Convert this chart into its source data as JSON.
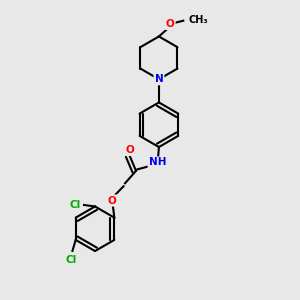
{
  "bg_color": "#e8e8e8",
  "bond_color": "#000000",
  "bond_width": 1.5,
  "atom_colors": {
    "O": "#ff0000",
    "N": "#0000ee",
    "Cl": "#00aa00",
    "C": "#000000",
    "H": "#888888"
  },
  "font_size": 7.5,
  "figsize": [
    3.0,
    3.0
  ],
  "dpi": 100,
  "xlim": [
    0,
    10
  ],
  "ylim": [
    0,
    10
  ]
}
